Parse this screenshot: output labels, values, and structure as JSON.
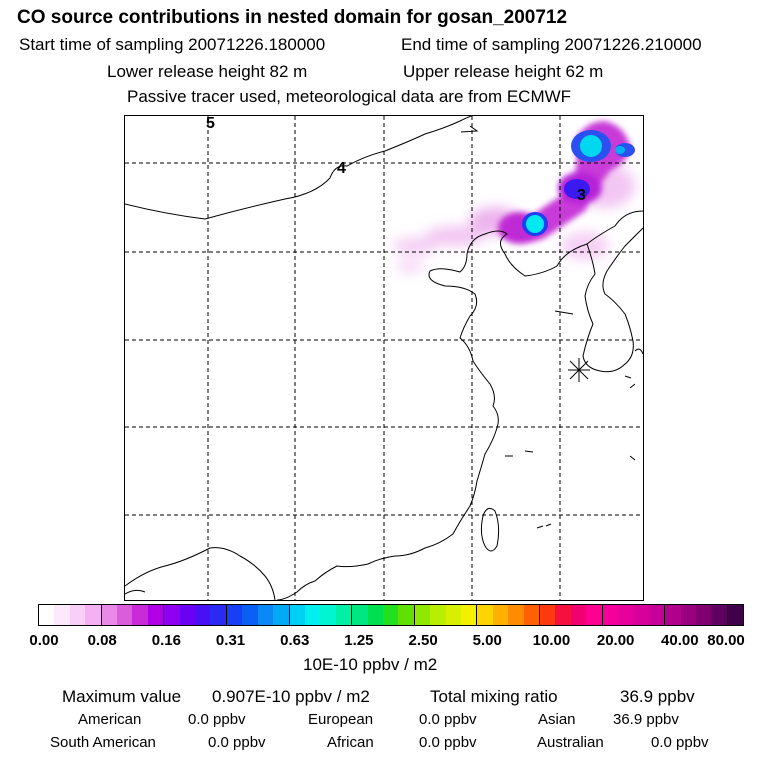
{
  "header": {
    "title": "CO  source contributions in nested domain for gosan_200712",
    "start_label": "Start time of sampling 20071226.180000",
    "end_label": "End time of sampling 20071226.210000",
    "lower_label": "Lower release height   82 m",
    "upper_label": "Upper release height   62 m",
    "note": "Passive tracer used, meteorological data are from ECMWF"
  },
  "map": {
    "markers": [
      "5",
      "4",
      "3"
    ]
  },
  "colorbar": {
    "ticks": [
      "0.00",
      "0.08",
      "0.16",
      "0.31",
      "0.63",
      "1.25",
      "2.50",
      "5.00",
      "10.00",
      "20.00",
      "40.00",
      "80.00"
    ],
    "unit": "10E-10 ppbv / m2",
    "colors": [
      "#ffffff",
      "#fde8fd",
      "#f9cff9",
      "#f3b1f3",
      "#e98ae9",
      "#dc5ddc",
      "#c92bd6",
      "#b100e6",
      "#8f00f0",
      "#6a00f5",
      "#4a10f5",
      "#2a2af5",
      "#1740f5",
      "#0a60f5",
      "#0a88f5",
      "#00aaf5",
      "#00cff5",
      "#00f0f0",
      "#00f5d0",
      "#00f0a8",
      "#00e680",
      "#00df50",
      "#20e020",
      "#60e000",
      "#90e800",
      "#b8ee00",
      "#d8f000",
      "#f5f000",
      "#ffd400",
      "#ffb000",
      "#ff8c00",
      "#ff6000",
      "#ff3a10",
      "#f51040",
      "#f00070",
      "#ff0090",
      "#f5009c",
      "#e8009c",
      "#d8009a",
      "#c8009a",
      "#b0008c",
      "#980080",
      "#800070",
      "#600060",
      "#40004a"
    ]
  },
  "stats": {
    "max_label": "Maximum value",
    "max_value": "0.907E-10 ppbv / m2",
    "total_label": "Total mixing ratio",
    "total_value": "36.9 ppbv",
    "regions": [
      {
        "name": "American",
        "value": "0.0 ppbv"
      },
      {
        "name": "European",
        "value": "0.0 ppbv"
      },
      {
        "name": "Asian",
        "value": "36.9 ppbv"
      },
      {
        "name": "South American",
        "value": "0.0 ppbv"
      },
      {
        "name": "African",
        "value": "0.0 ppbv"
      },
      {
        "name": "Australian",
        "value": "0.0 ppbv"
      }
    ]
  }
}
